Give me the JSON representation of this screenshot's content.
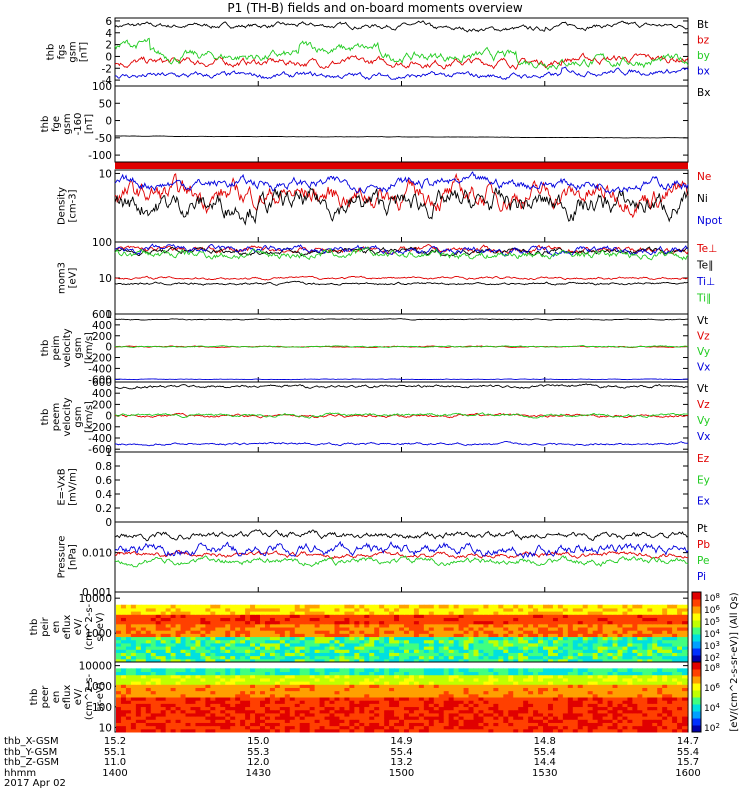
{
  "title": "P1 (TH-B) fields and on-board moments overview",
  "date": "2017 Apr 02",
  "colors": {
    "black": "#000000",
    "red": "#e00000",
    "green": "#22cc22",
    "blue": "#0000dd"
  },
  "colorbar_label": "[eV/(cm^2-s-sr-eV)] (All Qs)",
  "chart_data": [
    {
      "type": "line",
      "id": "fgs",
      "ylabel": [
        "thb",
        "fgs",
        "gsm",
        "[nT]"
      ],
      "ylim": [
        -5,
        6.5
      ],
      "yticks": [
        6,
        4,
        2,
        0,
        -2,
        -4
      ],
      "series": [
        {
          "name": "Bt",
          "color": "black",
          "base": 5.2,
          "noise": 0.25,
          "events": [
            [
              0.55,
              0.75,
              -0.6
            ]
          ]
        },
        {
          "name": "bz",
          "color": "red",
          "base": -1.0,
          "noise": 0.4,
          "events": [
            [
              0.78,
              1.0,
              0.6
            ]
          ]
        },
        {
          "name": "by",
          "color": "green",
          "base": 0.0,
          "noise": 0.5,
          "events": [
            [
              0.0,
              0.06,
              2.0
            ],
            [
              0.32,
              0.37,
              1.5
            ],
            [
              0.37,
              0.46,
              1.2
            ],
            [
              0.7,
              1.0,
              -0.8
            ]
          ]
        },
        {
          "name": "bx",
          "color": "blue",
          "base": -3.3,
          "noise": 0.3,
          "events": [
            [
              0.78,
              1.0,
              0.8
            ]
          ]
        }
      ]
    },
    {
      "type": "line",
      "id": "fge",
      "ylabel": [
        "thb",
        "fge",
        "gsm",
        "-160",
        "[nT]"
      ],
      "ylim": [
        -120,
        100
      ],
      "yticks": [
        100,
        50,
        0,
        -50,
        -100
      ],
      "series": [
        {
          "name": "Bx",
          "color": "black",
          "base": -45,
          "noise": 0.3,
          "drift": -5,
          "start": 0.0
        }
      ]
    },
    {
      "type": "line",
      "id": "density",
      "log": true,
      "ylabel": [
        "Density",
        "[cm-3]"
      ],
      "ylim": [
        1.5,
        11
      ],
      "yticks": [
        10
      ],
      "series": [
        {
          "name": "Ne",
          "color": "red",
          "base": 5.5,
          "noise": 0.08
        },
        {
          "name": "Ni",
          "color": "black",
          "base": 4.3,
          "noise": 0.08
        },
        {
          "name": "Npot",
          "color": "blue",
          "base": 7.6,
          "noise": 0.04
        }
      ]
    },
    {
      "type": "line",
      "id": "temp",
      "log": true,
      "ylabel": [
        "mom3",
        "[eV]"
      ],
      "ylim": [
        1,
        100
      ],
      "yticks": [
        100,
        10,
        1
      ],
      "series": [
        {
          "name": "Te⊥",
          "color": "red",
          "base": 60,
          "noise": 0.05
        },
        {
          "name": "Te∥",
          "color": "black",
          "base": 55,
          "noise": 0.05
        },
        {
          "name": "Ti⊥",
          "color": "blue",
          "base": 60,
          "noise": 0.06
        },
        {
          "name": "Ti∥",
          "color": "green",
          "base": 45,
          "noise": 0.07
        },
        {
          "name": "",
          "color": "red",
          "base": 10,
          "noise": 0.02
        },
        {
          "name": "",
          "color": "black",
          "base": 7,
          "noise": 0.02
        }
      ]
    },
    {
      "type": "line",
      "id": "peim",
      "ylabel": [
        "thb",
        "peim",
        "velocity",
        "gsm",
        "[km/s]"
      ],
      "ylim": [
        -650,
        600
      ],
      "yticks": [
        600,
        400,
        200,
        0,
        -200,
        -400,
        -600
      ],
      "series": [
        {
          "name": "Vt",
          "color": "black",
          "base": 500,
          "noise": 5
        },
        {
          "name": "Vz",
          "color": "red",
          "base": 0,
          "noise": 6
        },
        {
          "name": "Vy",
          "color": "green",
          "base": 0,
          "noise": 6
        },
        {
          "name": "Vx",
          "color": "blue",
          "base": -600,
          "noise": 3
        }
      ]
    },
    {
      "type": "line",
      "id": "peem",
      "ylabel": [
        "thb",
        "peem",
        "velocity",
        "gsm",
        "[km/s]"
      ],
      "ylim": [
        -650,
        600
      ],
      "yticks": [
        600,
        400,
        200,
        0,
        -200,
        -400,
        -600
      ],
      "series": [
        {
          "name": "Vt",
          "color": "black",
          "base": 520,
          "noise": 15
        },
        {
          "name": "Vz",
          "color": "red",
          "base": 0,
          "noise": 15
        },
        {
          "name": "Vy",
          "color": "green",
          "base": 10,
          "noise": 15
        },
        {
          "name": "Vx",
          "color": "blue",
          "base": -500,
          "noise": 12
        }
      ]
    },
    {
      "type": "line",
      "id": "efield",
      "ylabel": [
        "E=-VxB",
        "[mV/m]"
      ],
      "ylim": [
        0,
        1
      ],
      "yticks": [
        1.0,
        0.8,
        0.6,
        0.4,
        0.2,
        0.0
      ],
      "series": [
        {
          "name": "Ez",
          "color": "red",
          "empty": true
        },
        {
          "name": "Ey",
          "color": "green",
          "empty": true
        },
        {
          "name": "Ex",
          "color": "blue",
          "empty": true
        }
      ]
    },
    {
      "type": "line",
      "id": "pressure",
      "log": true,
      "ylabel": [
        "Pressure",
        "[nPa]"
      ],
      "ylim": [
        0.001,
        0.06
      ],
      "yticks": [
        0.01,
        0.001
      ],
      "ytick_labels": [
        "0.010",
        "0.001"
      ],
      "series": [
        {
          "name": "Pt",
          "color": "black",
          "base": 0.027,
          "noise": 0.05
        },
        {
          "name": "Pb",
          "color": "red",
          "base": 0.009,
          "noise": 0.04
        },
        {
          "name": "Pe",
          "color": "green",
          "base": 0.006,
          "noise": 0.05
        },
        {
          "name": "Pi",
          "color": "blue",
          "base": 0.012,
          "noise": 0.08
        }
      ]
    },
    {
      "type": "heatmap",
      "id": "peir",
      "ylabel": [
        "thb",
        "peir",
        "en",
        "eflux",
        "eV/",
        "(cm^2-s-",
        "sr-eV)"
      ],
      "log": true,
      "ylim": [
        150,
        15000
      ],
      "yticks": [
        10000,
        1000
      ],
      "cbar_ticks": [
        "10^8",
        "10^6",
        "10^5",
        "10^4",
        "10^3",
        "10^2"
      ]
    },
    {
      "type": "heatmap",
      "id": "peer",
      "ylabel": [
        "thb",
        "peer",
        "en",
        "eflux",
        "eV/",
        "(cm^2-s-",
        "sr-eV)"
      ],
      "log": true,
      "ylim": [
        6,
        15000
      ],
      "yticks": [
        10000,
        1000,
        100,
        10
      ],
      "cbar_ticks": [
        "10^8",
        "10^6",
        "10^4",
        "10^2"
      ]
    }
  ],
  "xaxis": {
    "row_labels": [
      "thb_X-GSM",
      "thb_Y-GSM",
      "thb_Z-GSM",
      "hhmm"
    ],
    "columns": [
      [
        "15.2",
        "55.1",
        "11.0",
        "1400"
      ],
      [
        "15.0",
        "55.3",
        "12.0",
        "1430"
      ],
      [
        "14.9",
        "55.4",
        "13.2",
        "1500"
      ],
      [
        "14.8",
        "55.4",
        "14.4",
        "1530"
      ],
      [
        "14.7",
        "55.4",
        "15.7",
        "1600"
      ]
    ]
  }
}
